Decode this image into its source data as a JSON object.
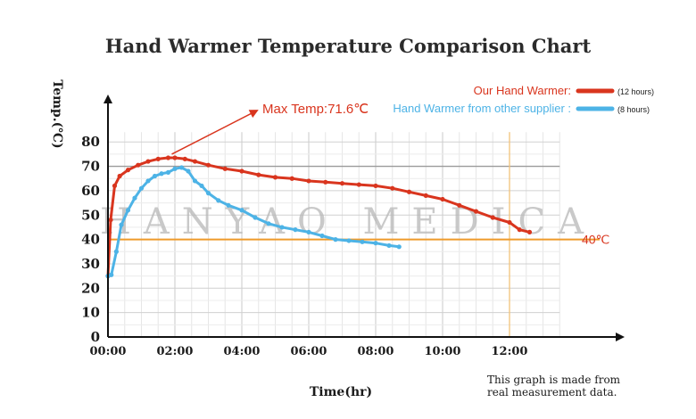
{
  "chart_data": {
    "type": "line",
    "title": "Hand Warmer Temperature Comparison Chart",
    "xlabel": "Time(hr)",
    "ylabel": "Temp.(℃)",
    "x_ticks": [
      "00:00",
      "02:00",
      "04:00",
      "06:00",
      "08:00",
      "10:00",
      "12:00"
    ],
    "y_ticks": [
      0,
      10,
      20,
      30,
      40,
      50,
      60,
      70,
      80
    ],
    "xlim": [
      0,
      14
    ],
    "ylim": [
      0,
      85
    ],
    "grid": true,
    "legend_position": "top-right",
    "series": [
      {
        "name": "Our Hand Warmer:",
        "duration_label": "(12 hours)",
        "color": "#d9351e",
        "x": [
          0.0,
          0.08,
          0.2,
          0.35,
          0.6,
          0.9,
          1.2,
          1.5,
          1.8,
          2.0,
          2.3,
          2.6,
          3.0,
          3.5,
          4.0,
          4.5,
          5.0,
          5.5,
          6.0,
          6.5,
          7.0,
          7.5,
          8.0,
          8.5,
          9.0,
          9.5,
          10.0,
          10.5,
          11.0,
          11.5,
          12.0,
          12.3,
          12.6
        ],
        "y": [
          25,
          48,
          62,
          66,
          68.5,
          70.5,
          72,
          73,
          73.5,
          73.5,
          73,
          72,
          70.5,
          69,
          68,
          66.5,
          65.5,
          65,
          64,
          63.5,
          63,
          62.5,
          62,
          61,
          59.5,
          58,
          56.5,
          54,
          51.5,
          49,
          47,
          44,
          43
        ]
      },
      {
        "name": "Hand Warmer from other supplier :",
        "duration_label": "(8 hours)",
        "color": "#4db3e6",
        "x": [
          0.0,
          0.1,
          0.25,
          0.4,
          0.6,
          0.8,
          1.0,
          1.2,
          1.4,
          1.6,
          1.8,
          2.0,
          2.2,
          2.4,
          2.6,
          2.8,
          3.0,
          3.3,
          3.6,
          4.0,
          4.4,
          4.8,
          5.2,
          5.6,
          6.0,
          6.4,
          6.8,
          7.2,
          7.6,
          8.0,
          8.4,
          8.7
        ],
        "y": [
          25,
          25.5,
          35,
          46,
          52,
          57,
          61,
          64,
          66,
          67,
          67.5,
          69,
          69.5,
          68,
          64,
          62,
          59,
          56,
          54,
          52,
          49,
          46.5,
          45,
          44,
          43,
          41.5,
          40,
          39.5,
          39,
          38.5,
          37.5,
          37
        ]
      }
    ],
    "annotations": {
      "max_temp": "Max Temp:71.6℃",
      "threshold_value": 40,
      "threshold_label": "40℃",
      "watermark": "HANYAO MEDICA",
      "note_line1": "This graph is made from",
      "note_line2": "real measurement data."
    }
  }
}
